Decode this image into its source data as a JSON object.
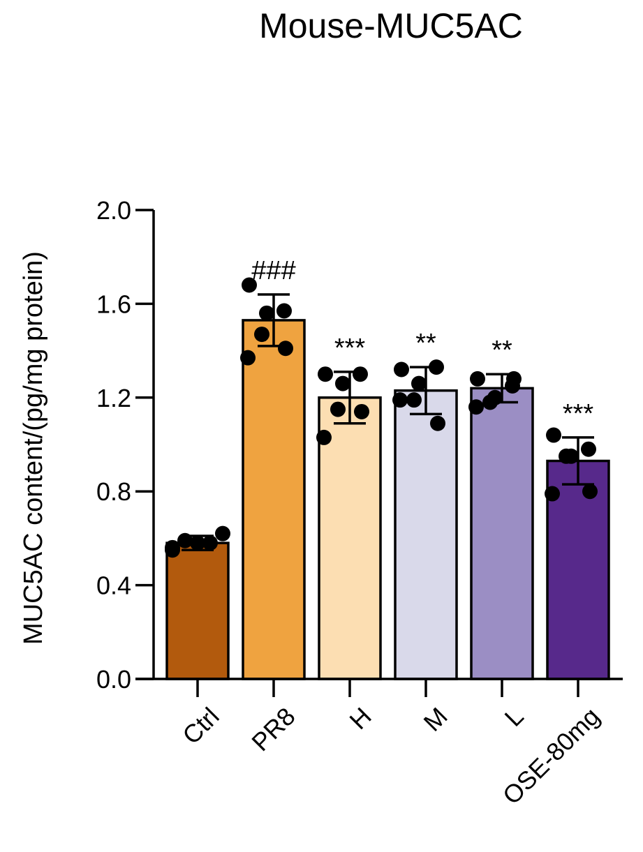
{
  "chart_data": {
    "type": "bar",
    "title": "Mouse-MUC5AC",
    "xlabel": "",
    "ylabel": "MUC5AC content/(pg/mg protein)",
    "ylim": [
      0,
      2.0
    ],
    "yticks": [
      0,
      0.4,
      0.8,
      1.2,
      1.6,
      2.0
    ],
    "ytick_labels": [
      "0.0",
      "0.4",
      "0.8",
      "1.2",
      "1.6",
      "2.0"
    ],
    "grid": false,
    "legend": "none",
    "categories": [
      "Ctrl",
      "PR8",
      "H",
      "M",
      "L",
      "OSE-80mg"
    ],
    "values": [
      0.58,
      1.53,
      1.2,
      1.23,
      1.24,
      0.93
    ],
    "error": [
      0.03,
      0.11,
      0.11,
      0.1,
      0.06,
      0.1
    ],
    "significance": [
      "",
      "###",
      "***",
      "**",
      "**",
      "***"
    ],
    "colors": [
      "#B25A0D",
      "#EFA340",
      "#FCDEB2",
      "#D9D9EA",
      "#9B8EC4",
      "#57298B"
    ],
    "points": [
      [
        0.56,
        0.59,
        0.58,
        0.58,
        0.62,
        0.55
      ],
      [
        1.68,
        1.56,
        1.57,
        1.47,
        1.41,
        1.37
      ],
      [
        1.3,
        1.26,
        1.3,
        1.15,
        1.14,
        1.03
      ],
      [
        1.32,
        1.26,
        1.33,
        1.19,
        1.09,
        1.19
      ],
      [
        1.28,
        1.2,
        1.25,
        1.18,
        1.28,
        1.16
      ],
      [
        1.04,
        0.95,
        0.98,
        0.95,
        0.8,
        0.79
      ]
    ]
  }
}
